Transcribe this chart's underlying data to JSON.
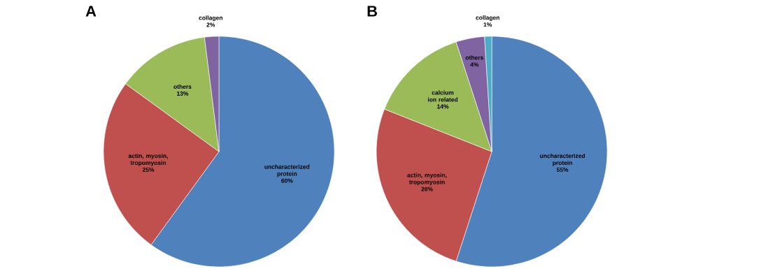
{
  "chart_data": [
    {
      "type": "pie",
      "title": "A",
      "categories": [
        "uncharacterized protein",
        "actin, myosin, tropomyosin",
        "others",
        "collagen"
      ],
      "values": [
        60,
        25,
        13,
        2
      ],
      "value_labels": [
        "60%",
        "25%",
        "13%",
        "2%"
      ],
      "colors": [
        "#4f81bd",
        "#c0504d",
        "#9bbb59",
        "#8064a2"
      ]
    },
    {
      "type": "pie",
      "title": "B",
      "categories": [
        "uncharacterized protein",
        "actin, myosin, tropomyosin",
        "calcium ion related",
        "others",
        "collagen"
      ],
      "values": [
        55,
        26,
        14,
        4,
        1
      ],
      "value_labels": [
        "55%",
        "26%",
        "14%",
        "4%",
        "1%"
      ],
      "colors": [
        "#4f81bd",
        "#c0504d",
        "#9bbb59",
        "#8064a2",
        "#4bacc6"
      ]
    }
  ]
}
